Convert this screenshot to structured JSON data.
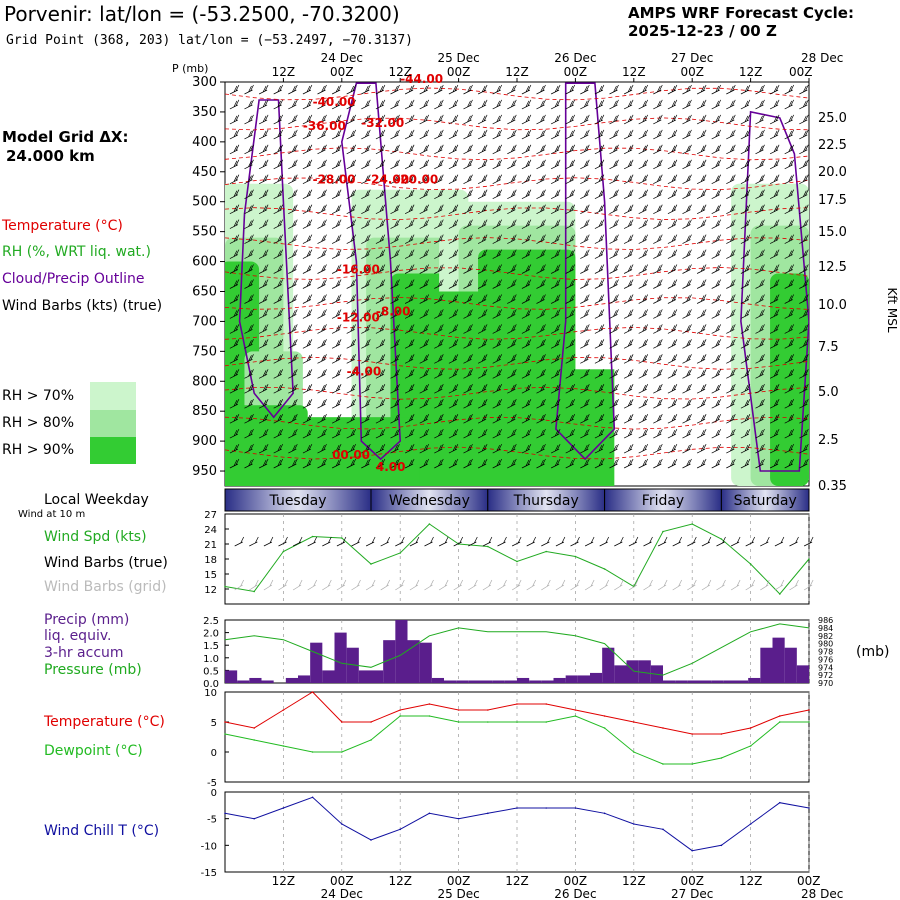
{
  "header": {
    "location": "Porvenir:",
    "latlon": "lat/lon = (-53.2500, -70.3200)",
    "grid_point": "Grid Point (368, 203) lat/lon = (−53.2497, −70.3137)",
    "model_title": "AMPS WRF Forecast Cycle:",
    "cycle": "2025-12-23 / 00  Z"
  },
  "left_legend": {
    "model_grid_label": "Model Grid ΔX:",
    "model_grid_value": "24.000 km",
    "temperature": "Temperature (°C)",
    "rh": "RH (%, WRT liq. wat.)",
    "cloud": "Cloud/Precip Outline",
    "wind": "Wind Barbs (kts) (true)",
    "rh_levels": [
      "RH > 70%",
      "RH > 80%",
      "RH > 90%"
    ],
    "local_weekday": "Local Weekday",
    "wind_10m": "Wind at 10 m",
    "wind_spd": "Wind Spd (kts)",
    "wind_barbs_true": "Wind Barbs (true)",
    "wind_barbs_grid": "Wind Barbs (grid)",
    "precip_line1": "Precip (mm)",
    "precip_line2": "liq. equiv.",
    "precip_line3": "3-hr accum",
    "pressure": "Pressure (mb)",
    "pressure_unit": "(mb)",
    "temp2": "Temperature (°C)",
    "dewpoint": "Dewpoint (°C)",
    "windchill": "Wind Chill T (°C)"
  },
  "colors": {
    "temperature": "#e00000",
    "rh": "#22aa22",
    "cloud": "#660099",
    "precip": "#5a1e8c",
    "pressure": "#1faa1f",
    "dewpoint": "#22bb22",
    "windchill": "#1010a0",
    "rh70": "#ccf5cc",
    "rh80": "#a0e6a0",
    "rh90": "#33cc33"
  },
  "chart_data": [
    {
      "type": "cross-section",
      "title": "Vertical profile",
      "ylabel": "P (mb)",
      "y2label": "Kft MSL",
      "pressure_levels": [
        300,
        350,
        400,
        450,
        500,
        550,
        600,
        650,
        700,
        750,
        800,
        850,
        900,
        950
      ],
      "height_ticks": [
        "25.0",
        "22.5",
        "20.0",
        "17.5",
        "15.0",
        "12.5",
        "10.0",
        "7.5",
        "5.0",
        "2.5",
        "0.35"
      ],
      "time_ticks_top": [
        "12Z",
        "00Z",
        "12Z",
        "00Z",
        "12Z",
        "00Z",
        "12Z",
        "00Z",
        "12Z",
        "00Z"
      ],
      "date_ticks_top": [
        "24 Dec",
        "25 Dec",
        "26 Dec",
        "27 Dec",
        "28 Dec"
      ],
      "temperature_labels": [
        "-44.00",
        "-40.00",
        "-36.00",
        "-32.00",
        "-28.00",
        "-24.00",
        "-20.00",
        "-16.00",
        "-12.00",
        "-8.00",
        "-4.00",
        "00.00",
        "4.00"
      ]
    },
    {
      "type": "label-bar",
      "weekdays": [
        "Tuesday",
        "Wednesday",
        "Thursday",
        "Friday",
        "Saturday"
      ]
    },
    {
      "type": "line",
      "title": "Wind Spd (kts)",
      "y_ticks": [
        12,
        15,
        18,
        21,
        24,
        27
      ],
      "ylim": [
        9,
        27
      ],
      "hours": [
        0,
        6,
        12,
        18,
        24,
        30,
        36,
        42,
        48,
        54,
        60,
        66,
        72,
        78,
        84,
        90,
        96,
        102,
        108,
        114,
        120
      ],
      "wind_speed_kts": [
        12.5,
        11.5,
        19.5,
        22.5,
        22.2,
        17.0,
        19.2,
        25.0,
        21.0,
        20.5,
        17.5,
        19.5,
        18.5,
        16.0,
        12.5,
        23.5,
        25.0,
        22.0,
        17.0,
        11.0,
        18.0
      ]
    },
    {
      "type": "bar",
      "title": "Precip (mm) 3-hr accum",
      "ylim": [
        0,
        2.5
      ],
      "y_ticks": [
        0.0,
        0.5,
        1.0,
        1.5,
        2.0,
        2.5
      ],
      "precip_mm": [
        0.5,
        0.1,
        0.2,
        0.1,
        0.0,
        0.2,
        0.3,
        1.6,
        0.5,
        2.0,
        1.4,
        0.5,
        0.5,
        1.7,
        2.6,
        1.7,
        1.6,
        0.2,
        0.1,
        0.1,
        0.1,
        0.1,
        0.1,
        0.1,
        0.2,
        0.1,
        0.1,
        0.2,
        0.3,
        0.3,
        0.4,
        1.4,
        0.7,
        0.9,
        0.9,
        0.7,
        0.1,
        0.1,
        0.1,
        0.1,
        0.1,
        0.1,
        0.1,
        0.2,
        1.4,
        1.8,
        1.4,
        0.7
      ],
      "pressure_y_ticks": [
        970,
        972,
        974,
        976,
        978,
        980,
        982,
        984,
        986
      ],
      "pressure_ylim": [
        970,
        986
      ],
      "pressure_hours": [
        0,
        6,
        12,
        18,
        24,
        30,
        36,
        42,
        48,
        54,
        60,
        66,
        72,
        78,
        84,
        90,
        96,
        102,
        108,
        114,
        120
      ],
      "pressure_mb": [
        981,
        982,
        981,
        978,
        975,
        974,
        977,
        982,
        984,
        983,
        983,
        983,
        982,
        980,
        973,
        972,
        975,
        979,
        983,
        985,
        984
      ]
    },
    {
      "type": "line",
      "title": "Temperature / Dewpoint (°C)",
      "ylim": [
        -5,
        10
      ],
      "y_ticks": [
        -5,
        0,
        5,
        10
      ],
      "hours": [
        0,
        6,
        12,
        18,
        24,
        30,
        36,
        42,
        48,
        54,
        60,
        66,
        72,
        78,
        84,
        90,
        96,
        102,
        108,
        114,
        120
      ],
      "temperature_c": [
        5,
        4,
        7,
        10,
        5,
        5,
        7,
        8,
        7,
        7,
        8,
        8,
        7,
        6,
        5,
        4,
        3,
        3,
        4,
        6,
        7
      ],
      "dewpoint_c": [
        3,
        2,
        1,
        0,
        0,
        2,
        6,
        6,
        5,
        5,
        5,
        5,
        6,
        4,
        0,
        -2,
        -2,
        -1,
        1,
        5,
        5
      ]
    },
    {
      "type": "line",
      "title": "Wind Chill T (°C)",
      "ylim": [
        -15,
        0
      ],
      "y_ticks": [
        -15,
        -10,
        -5,
        0
      ],
      "hours": [
        0,
        6,
        12,
        18,
        24,
        30,
        36,
        42,
        48,
        54,
        60,
        66,
        72,
        78,
        84,
        90,
        96,
        102,
        108,
        114,
        120
      ],
      "windchill_c": [
        -4,
        -5,
        -3,
        -1,
        -6,
        -9,
        -7,
        -4,
        -5,
        -4,
        -3,
        -3,
        -3,
        -4,
        -6,
        -7,
        -11,
        -10,
        -6,
        -2,
        -3
      ]
    }
  ],
  "bottom_axis": {
    "time_ticks": [
      "12Z",
      "00Z",
      "12Z",
      "00Z",
      "12Z",
      "00Z",
      "12Z",
      "00Z",
      "12Z",
      "00Z"
    ],
    "date_ticks": [
      "24 Dec",
      "25 Dec",
      "26 Dec",
      "27 Dec",
      "28 Dec"
    ]
  }
}
